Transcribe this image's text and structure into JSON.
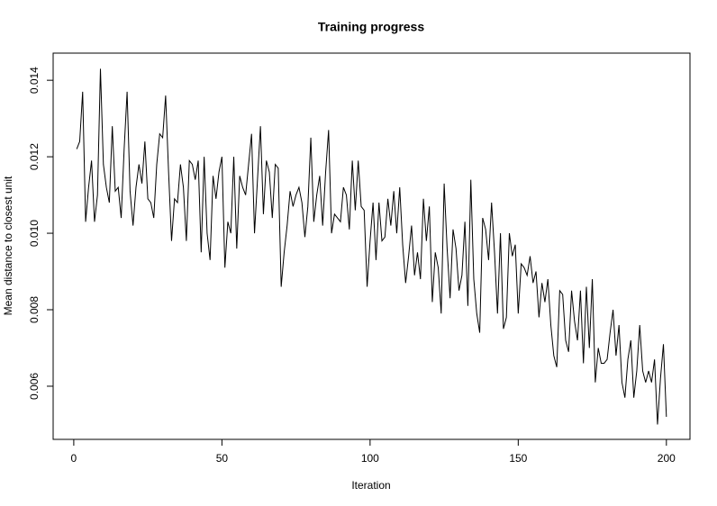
{
  "chart_data": {
    "type": "line",
    "title": "Training progress",
    "x_label": "Iteration",
    "y_label": "Mean distance to closest unit",
    "x": [
      1,
      2,
      3,
      4,
      5,
      6,
      7,
      8,
      9,
      10,
      11,
      12,
      13,
      14,
      15,
      16,
      17,
      18,
      19,
      20,
      21,
      22,
      23,
      24,
      25,
      26,
      27,
      28,
      29,
      30,
      31,
      32,
      33,
      34,
      35,
      36,
      37,
      38,
      39,
      40,
      41,
      42,
      43,
      44,
      45,
      46,
      47,
      48,
      49,
      50,
      51,
      52,
      53,
      54,
      55,
      56,
      57,
      58,
      59,
      60,
      61,
      62,
      63,
      64,
      65,
      66,
      67,
      68,
      69,
      70,
      71,
      72,
      73,
      74,
      75,
      76,
      77,
      78,
      79,
      80,
      81,
      82,
      83,
      84,
      85,
      86,
      87,
      88,
      89,
      90,
      91,
      92,
      93,
      94,
      95,
      96,
      97,
      98,
      99,
      100,
      101,
      102,
      103,
      104,
      105,
      106,
      107,
      108,
      109,
      110,
      111,
      112,
      113,
      114,
      115,
      116,
      117,
      118,
      119,
      120,
      121,
      122,
      123,
      124,
      125,
      126,
      127,
      128,
      129,
      130,
      131,
      132,
      133,
      134,
      135,
      136,
      137,
      138,
      139,
      140,
      141,
      142,
      143,
      144,
      145,
      146,
      147,
      148,
      149,
      150,
      151,
      152,
      153,
      154,
      155,
      156,
      157,
      158,
      159,
      160,
      161,
      162,
      163,
      164,
      165,
      166,
      167,
      168,
      169,
      170,
      171,
      172,
      173,
      174,
      175,
      176,
      177,
      178,
      179,
      180,
      181,
      182,
      183,
      184,
      185,
      186,
      187,
      188,
      189,
      190,
      191,
      192,
      193,
      194,
      195,
      196,
      197,
      198,
      199,
      200
    ],
    "series": [
      {
        "name": "Mean distance",
        "color": "#000000",
        "values": [
          0.0122,
          0.0124,
          0.0137,
          0.0103,
          0.0112,
          0.0119,
          0.0103,
          0.011,
          0.0143,
          0.0118,
          0.0112,
          0.0108,
          0.0128,
          0.0111,
          0.0112,
          0.0104,
          0.0122,
          0.0137,
          0.0111,
          0.0102,
          0.0112,
          0.0118,
          0.0113,
          0.0124,
          0.0109,
          0.0108,
          0.0104,
          0.0118,
          0.0126,
          0.0125,
          0.0136,
          0.0116,
          0.0098,
          0.0109,
          0.0108,
          0.0118,
          0.0112,
          0.0098,
          0.0119,
          0.0118,
          0.0114,
          0.0119,
          0.0095,
          0.012,
          0.01,
          0.0093,
          0.0115,
          0.0109,
          0.0116,
          0.012,
          0.0091,
          0.0103,
          0.01,
          0.012,
          0.0096,
          0.0115,
          0.0112,
          0.011,
          0.0118,
          0.0126,
          0.01,
          0.0114,
          0.0128,
          0.0105,
          0.0119,
          0.0116,
          0.0104,
          0.0118,
          0.0117,
          0.0086,
          0.0095,
          0.0102,
          0.0111,
          0.0107,
          0.011,
          0.0112,
          0.0108,
          0.0099,
          0.0107,
          0.0125,
          0.0103,
          0.011,
          0.0115,
          0.0102,
          0.0116,
          0.0127,
          0.01,
          0.0105,
          0.0104,
          0.0103,
          0.0112,
          0.011,
          0.0101,
          0.0119,
          0.0106,
          0.0119,
          0.0107,
          0.0106,
          0.0086,
          0.0098,
          0.0108,
          0.0093,
          0.0108,
          0.0098,
          0.0099,
          0.0109,
          0.0102,
          0.0111,
          0.01,
          0.0112,
          0.0097,
          0.0087,
          0.0094,
          0.0102,
          0.0089,
          0.0095,
          0.0088,
          0.0109,
          0.0098,
          0.0107,
          0.0082,
          0.0095,
          0.0091,
          0.0079,
          0.0113,
          0.0096,
          0.0083,
          0.0101,
          0.0096,
          0.0085,
          0.0089,
          0.0103,
          0.0081,
          0.0114,
          0.0088,
          0.0079,
          0.0074,
          0.0104,
          0.0101,
          0.0093,
          0.0108,
          0.0095,
          0.0079,
          0.01,
          0.0075,
          0.0078,
          0.01,
          0.0094,
          0.0097,
          0.0079,
          0.0092,
          0.0091,
          0.0089,
          0.0094,
          0.0087,
          0.009,
          0.0078,
          0.0087,
          0.0082,
          0.0088,
          0.0076,
          0.0068,
          0.0065,
          0.0085,
          0.0084,
          0.0072,
          0.0069,
          0.0085,
          0.0077,
          0.0072,
          0.0085,
          0.0066,
          0.0086,
          0.007,
          0.0088,
          0.0061,
          0.007,
          0.0066,
          0.0066,
          0.0067,
          0.0074,
          0.008,
          0.0068,
          0.0076,
          0.0061,
          0.0057,
          0.0067,
          0.0072,
          0.0057,
          0.0064,
          0.0076,
          0.0064,
          0.0061,
          0.0064,
          0.0061,
          0.0067,
          0.005,
          0.0062,
          0.0071,
          0.0052
        ]
      }
    ],
    "xlim": [
      -6.96,
      207.96
    ],
    "ylim": [
      0.00461,
      0.01471
    ],
    "xticks": [
      0,
      50,
      100,
      150,
      200
    ],
    "yticks": [
      0.006,
      0.008,
      {
        "value": 0.01,
        "label": "0.010"
      },
      0.012,
      0.014
    ]
  }
}
